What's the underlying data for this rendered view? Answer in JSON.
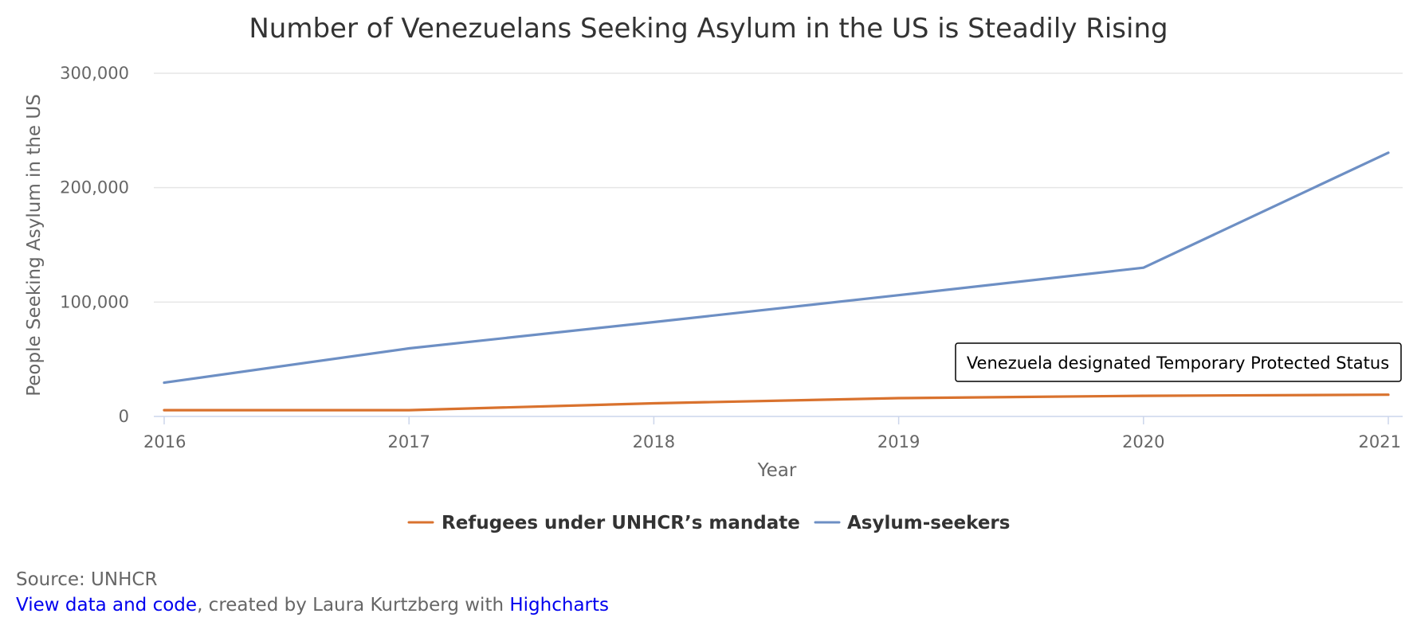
{
  "chart_data": {
    "type": "line",
    "title": "Number of Venezuelans Seeking Asylum in the US is Steadily Rising",
    "xlabel": "Year",
    "ylabel": "People Seeking Asylum in the US",
    "x": [
      2016,
      2017,
      2018,
      2019,
      2020,
      2021
    ],
    "xlim": [
      2016,
      2021
    ],
    "ylim": [
      0,
      300000
    ],
    "y_ticks": [
      0,
      100000,
      200000,
      300000
    ],
    "y_tick_labels": [
      "0",
      "100,000",
      "200,000",
      "300,000"
    ],
    "x_tick_labels": [
      "2016",
      "2017",
      "2018",
      "2019",
      "2020",
      "2021"
    ],
    "grid": "horizontal",
    "legend_position": "bottom-center",
    "series": [
      {
        "name": "Refugees under UNHCR’s mandate",
        "color": "#d9722e",
        "values": [
          5500,
          5500,
          11500,
          16000,
          18000,
          19000
        ]
      },
      {
        "name": "Asylum-seekers",
        "color": "#6d8fc4",
        "values": [
          29500,
          59500,
          82500,
          106000,
          130000,
          230500
        ]
      }
    ],
    "annotations": [
      {
        "text": "Venezuela designated Temporary Protected Status",
        "x": 2021,
        "y": 19000
      }
    ]
  },
  "credits": {
    "source": "Source: UNHCR",
    "link_text": "View data and code",
    "middle_text": ", created by Laura Kurtzberg with ",
    "highcharts_text": "Highcharts"
  },
  "colors": {
    "grid": "#e6e6e6",
    "axis": "#ccd6eb",
    "text": "#333333",
    "muted": "#666666"
  }
}
